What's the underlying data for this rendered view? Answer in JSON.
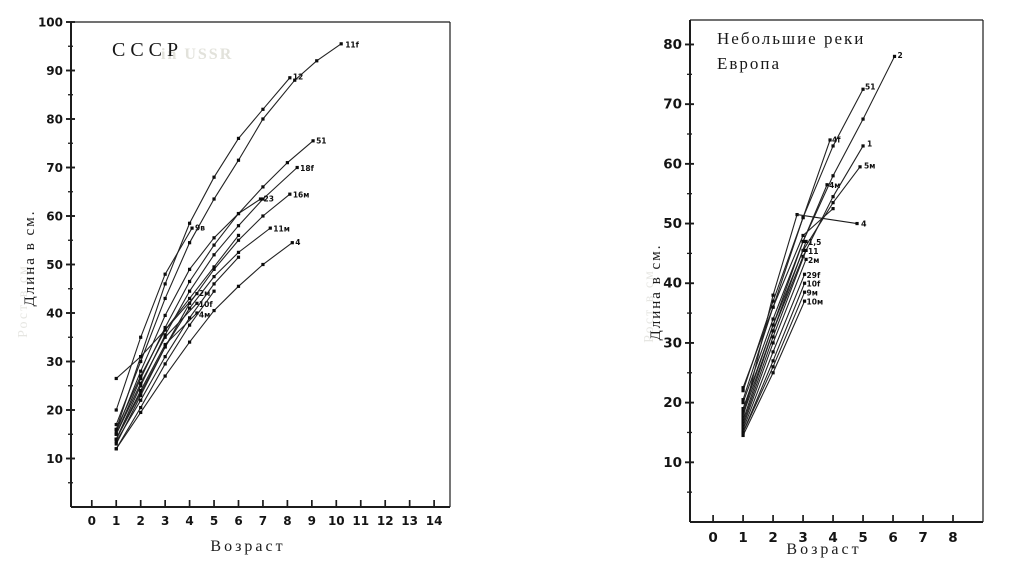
{
  "page": {
    "background": "#ffffff",
    "ink": "#1c1c1c"
  },
  "chart_data": [
    {
      "type": "line",
      "title": "СССР",
      "watermark": "in USSR",
      "xlabel": "Возраст",
      "ylabel": "Длина в см.",
      "ylabel_ghost": "Рост в см",
      "xlim": [
        -0.85,
        14.65
      ],
      "ylim": [
        0,
        100
      ],
      "x_ticks": [
        0,
        1,
        2,
        3,
        4,
        5,
        6,
        7,
        8,
        9,
        10,
        11,
        12,
        13,
        14
      ],
      "y_ticks": [
        10,
        20,
        30,
        40,
        50,
        60,
        70,
        80,
        90,
        100
      ],
      "y_minor_ticks": [
        5,
        15,
        25,
        35,
        45,
        55,
        65,
        75,
        85,
        95
      ],
      "grid": "off",
      "legend": "none",
      "marker": "square",
      "line_color": "#222222",
      "series": [
        {
          "label": "11f",
          "ldx": 4,
          "ldy": 1,
          "points": [
            [
              1,
              17
            ],
            [
              2,
              30
            ],
            [
              3,
              43
            ],
            [
              4,
              54.5
            ],
            [
              5,
              63.5
            ],
            [
              6,
              71.5
            ],
            [
              7,
              80
            ],
            [
              8.3,
              88
            ],
            [
              9.2,
              92
            ],
            [
              10.2,
              95.5
            ]
          ]
        },
        {
          "label": "12",
          "ldx": 3,
          "ldy": -1,
          "points": [
            [
              1,
              16
            ],
            [
              2,
              31
            ],
            [
              3,
              46
            ],
            [
              4,
              58.5
            ],
            [
              5,
              68
            ],
            [
              6,
              76
            ],
            [
              7,
              82
            ],
            [
              8.1,
              88.5
            ]
          ]
        },
        {
          "label": "51",
          "ldx": 3,
          "ldy": 0,
          "points": [
            [
              1,
              15
            ],
            [
              2,
              26.5
            ],
            [
              3,
              37
            ],
            [
              4,
              46.5
            ],
            [
              5,
              54
            ],
            [
              6,
              60.5
            ],
            [
              7,
              66
            ],
            [
              8,
              71
            ],
            [
              9.05,
              75.5
            ]
          ]
        },
        {
          "label": "18f",
          "ldx": 3,
          "ldy": 1,
          "points": [
            [
              1,
              14
            ],
            [
              2,
              25
            ],
            [
              3,
              35.5
            ],
            [
              4,
              44.5
            ],
            [
              5,
              52
            ],
            [
              6,
              58
            ],
            [
              7,
              63.5
            ],
            [
              8.4,
              70
            ]
          ]
        },
        {
          "label": "16м",
          "ldx": 3,
          "ldy": 1,
          "points": [
            [
              1,
              14
            ],
            [
              2,
              23.5
            ],
            [
              3,
              33
            ],
            [
              4,
              42
            ],
            [
              5,
              49
            ],
            [
              6,
              55
            ],
            [
              7,
              60
            ],
            [
              8.1,
              64.5
            ]
          ]
        },
        {
          "label": "23",
          "ldx": 3,
          "ldy": 0,
          "points": [
            [
              1,
              15.5
            ],
            [
              2,
              28
            ],
            [
              3,
              39.5
            ],
            [
              4,
              49
            ],
            [
              5,
              55.5
            ],
            [
              6,
              60.5
            ],
            [
              6.9,
              63.5
            ]
          ]
        },
        {
          "label": "11м",
          "ldx": 3,
          "ldy": 1,
          "points": [
            [
              1,
              13
            ],
            [
              2,
              23
            ],
            [
              3,
              33
            ],
            [
              4,
              41
            ],
            [
              5,
              47.5
            ],
            [
              6,
              52.5
            ],
            [
              7.3,
              57.5
            ]
          ]
        },
        {
          "label": "4",
          "ldx": 3,
          "ldy": 0,
          "points": [
            [
              1,
              12
            ],
            [
              2,
              19.5
            ],
            [
              3,
              27
            ],
            [
              4,
              34
            ],
            [
              5,
              40.5
            ],
            [
              6,
              45.5
            ],
            [
              7,
              50
            ],
            [
              8.2,
              54.5
            ]
          ]
        },
        {
          "label": "9в",
          "ldx": 3,
          "ldy": 0,
          "points": [
            [
              1,
              20
            ],
            [
              2,
              35
            ],
            [
              3,
              48
            ],
            [
              4.1,
              57.5
            ]
          ]
        },
        {
          "label": "",
          "points": [
            [
              1,
              26.5
            ],
            [
              2,
              31
            ],
            [
              3,
              36.5
            ],
            [
              4,
              43
            ],
            [
              5,
              49.5
            ],
            [
              6,
              56
            ]
          ]
        },
        {
          "label": "2м",
          "ldx": 2,
          "ldy": 0,
          "points": [
            [
              1,
              16
            ],
            [
              2,
              27
            ],
            [
              3,
              36.5
            ],
            [
              4.3,
              44
            ]
          ]
        },
        {
          "label": "10f",
          "ldx": 2,
          "ldy": 1,
          "points": [
            [
              1,
              15
            ],
            [
              2,
              25.5
            ],
            [
              3,
              35
            ],
            [
              4.3,
              42
            ]
          ]
        },
        {
          "label": "4м",
          "ldx": 2,
          "ldy": 2,
          "points": [
            [
              1,
              14
            ],
            [
              2,
              24
            ],
            [
              3,
              33.5
            ],
            [
              4.3,
              40
            ]
          ]
        },
        {
          "label": "",
          "points": [
            [
              1,
              13.5
            ],
            [
              2,
              22
            ],
            [
              3,
              31
            ],
            [
              4,
              39
            ],
            [
              5,
              46
            ],
            [
              6,
              51.5
            ]
          ]
        },
        {
          "label": "",
          "points": [
            [
              1,
              12
            ],
            [
              2,
              20.5
            ],
            [
              3,
              29.5
            ],
            [
              4,
              37.5
            ],
            [
              5,
              44.5
            ]
          ]
        }
      ],
      "annotations": []
    },
    {
      "type": "line",
      "title": "Небольшие реки Европа",
      "title_lines": [
        "Небольшие реки",
        "Европа"
      ],
      "watermark": "",
      "xlabel": "Возраст",
      "ylabel": "Длина в см.",
      "ylabel_ghost": "Рост в см",
      "xlim": [
        -0.77,
        9.0
      ],
      "ylim": [
        0,
        84.1
      ],
      "x_ticks": [
        0,
        1,
        2,
        3,
        4,
        5,
        6,
        7,
        8
      ],
      "y_ticks": [
        10,
        20,
        30,
        40,
        50,
        60,
        70,
        80
      ],
      "y_minor_ticks": [
        5,
        15,
        25,
        35,
        45,
        55,
        65,
        75
      ],
      "grid": "off",
      "legend": "none",
      "marker": "square",
      "line_color": "#222222",
      "series": [
        {
          "label": "2",
          "ldx": 3,
          "ldy": -1,
          "points": [
            [
              1,
              20
            ],
            [
              2,
              34
            ],
            [
              3,
              47
            ],
            [
              4,
              58
            ],
            [
              5,
              67.5
            ],
            [
              6.05,
              78
            ]
          ]
        },
        {
          "label": "51",
          "ldx": 2,
          "ldy": -2,
          "points": [
            [
              1,
              22
            ],
            [
              2,
              37
            ],
            [
              3,
              51
            ],
            [
              4,
              63
            ],
            [
              5,
              72.5
            ]
          ]
        },
        {
          "label": "4f",
          "ldx": 2,
          "ldy": 0,
          "points": [
            [
              1,
              20.5
            ],
            [
              2,
              36
            ],
            [
              3,
              51
            ],
            [
              3.9,
              64
            ]
          ]
        },
        {
          "label": "1",
          "ldx": 4,
          "ldy": -2,
          "points": [
            [
              1,
              18
            ],
            [
              2,
              32
            ],
            [
              3,
              44.5
            ],
            [
              4,
              54.5
            ],
            [
              5,
              63
            ]
          ]
        },
        {
          "label": "5м",
          "ldx": 4,
          "ldy": -1,
          "points": [
            [
              1,
              19
            ],
            [
              2,
              33
            ],
            [
              3,
              45.5
            ],
            [
              4,
              53.5
            ],
            [
              4.9,
              59.5
            ]
          ]
        },
        {
          "label": "4м",
          "ldx": 2,
          "ldy": 1,
          "points": [
            [
              1,
              18.5
            ],
            [
              2,
              33
            ],
            [
              3,
              47
            ],
            [
              3.8,
              56.5
            ]
          ]
        },
        {
          "label": "",
          "points": [
            [
              1,
              17.5
            ],
            [
              2,
              38
            ],
            [
              2.8,
              51.5
            ]
          ]
        },
        {
          "label": "",
          "points": [
            [
              1,
              22.5
            ],
            [
              2,
              36
            ],
            [
              3,
              48
            ],
            [
              4,
              52.5
            ]
          ]
        },
        {
          "label": "1,5",
          "ldx": 2,
          "ldy": 1,
          "points": [
            [
              1,
              17
            ],
            [
              2,
              32
            ],
            [
              3.1,
              47
            ]
          ]
        },
        {
          "label": "11",
          "ldx": 2,
          "ldy": 1,
          "points": [
            [
              1,
              16.5
            ],
            [
              2,
              31
            ],
            [
              3.1,
              45.5
            ]
          ]
        },
        {
          "label": "2м",
          "ldx": 2,
          "ldy": 1,
          "points": [
            [
              1,
              16
            ],
            [
              2,
              30
            ],
            [
              3.1,
              44
            ]
          ]
        },
        {
          "label": "29f",
          "ldx": 2,
          "ldy": 1,
          "points": [
            [
              1,
              15.5
            ],
            [
              2,
              28.5
            ],
            [
              3.05,
              41.5
            ]
          ]
        },
        {
          "label": "10f",
          "ldx": 2,
          "ldy": 1,
          "points": [
            [
              1,
              15
            ],
            [
              2,
              27
            ],
            [
              3.05,
              40
            ]
          ]
        },
        {
          "label": "9м",
          "ldx": 2,
          "ldy": 1,
          "points": [
            [
              1,
              15
            ],
            [
              2,
              26
            ],
            [
              3.05,
              38.5
            ]
          ]
        },
        {
          "label": "10м",
          "ldx": 2,
          "ldy": 1,
          "points": [
            [
              1,
              14.5
            ],
            [
              2,
              25
            ],
            [
              3.05,
              37
            ]
          ]
        }
      ],
      "annotations": [
        {
          "label": "4",
          "from": [
            4.8,
            50
          ],
          "to": [
            2.8,
            51.5
          ]
        }
      ]
    }
  ]
}
